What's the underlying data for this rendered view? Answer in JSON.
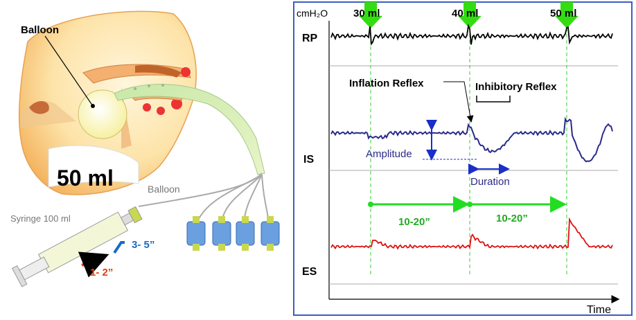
{
  "illustration": {
    "balloon_label": "Balloon",
    "volume": "50 ml",
    "tube_label": "Balloon",
    "syringe_label": "Syringe 100 ml",
    "step_fast": "1- 2”",
    "step_hold": "3- 5”"
  },
  "recording": {
    "unit": "cmH₂O",
    "volumes": [
      "30 ml",
      "40 ml",
      "50 ml"
    ],
    "channels": [
      "RP",
      "IS",
      "ES"
    ],
    "annotations": {
      "inflation_reflex": "Inflation Reflex",
      "inhibitory_reflex": "Inhibitory Reflex",
      "amplitude": "Amplitude",
      "duration": "Duration"
    },
    "intervals": [
      "10-20”",
      "10-20”"
    ],
    "x_axis_label": "Time"
  }
}
